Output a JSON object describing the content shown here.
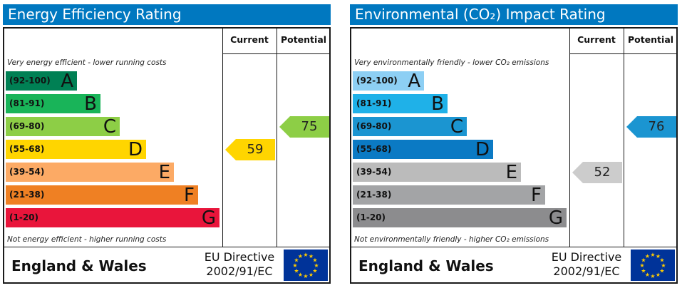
{
  "chart_data": [
    {
      "type": "bar",
      "title": "Energy Efficiency Rating",
      "columns": [
        "Current",
        "Potential"
      ],
      "top_note": "Very energy efficient - lower running costs",
      "bottom_note": "Not energy efficient - higher running costs",
      "bands": [
        {
          "range": "(92-100)",
          "letter": "A",
          "color": "#008054"
        },
        {
          "range": "(81-91)",
          "letter": "B",
          "color": "#19b459"
        },
        {
          "range": "(69-80)",
          "letter": "C",
          "color": "#8dce46"
        },
        {
          "range": "(55-68)",
          "letter": "D",
          "color": "#ffd500"
        },
        {
          "range": "(39-54)",
          "letter": "E",
          "color": "#fcaa65"
        },
        {
          "range": "(21-38)",
          "letter": "F",
          "color": "#ef8023"
        },
        {
          "range": "(1-20)",
          "letter": "G",
          "color": "#e9153b"
        }
      ],
      "current": {
        "value": 59,
        "band": "D",
        "color": "#ffd500"
      },
      "potential": {
        "value": 75,
        "band": "C",
        "color": "#8dce46"
      },
      "footer": {
        "country": "England & Wales",
        "directive_line1": "EU Directive",
        "directive_line2": "2002/91/EC"
      }
    },
    {
      "type": "bar",
      "title": "Environmental (CO₂) Impact Rating",
      "columns": [
        "Current",
        "Potential"
      ],
      "top_note": "Very environmentally friendly - lower CO₂ emissions",
      "bottom_note": "Not environmentally friendly - higher CO₂ emissions",
      "bands": [
        {
          "range": "(92-100)",
          "letter": "A",
          "color": "#8dcff4"
        },
        {
          "range": "(81-91)",
          "letter": "B",
          "color": "#1fb1e8"
        },
        {
          "range": "(69-80)",
          "letter": "C",
          "color": "#1b95d1"
        },
        {
          "range": "(55-68)",
          "letter": "D",
          "color": "#0b7ac4"
        },
        {
          "range": "(39-54)",
          "letter": "E",
          "color": "#bbbbbb"
        },
        {
          "range": "(21-38)",
          "letter": "F",
          "color": "#a3a4a6"
        },
        {
          "range": "(1-20)",
          "letter": "G",
          "color": "#8c8c8e"
        }
      ],
      "current": {
        "value": 52,
        "band": "E",
        "color": "#cccccc"
      },
      "potential": {
        "value": 76,
        "band": "C",
        "color": "#1b95d1"
      },
      "footer": {
        "country": "England & Wales",
        "directive_line1": "EU Directive",
        "directive_line2": "2002/91/EC"
      }
    }
  ]
}
